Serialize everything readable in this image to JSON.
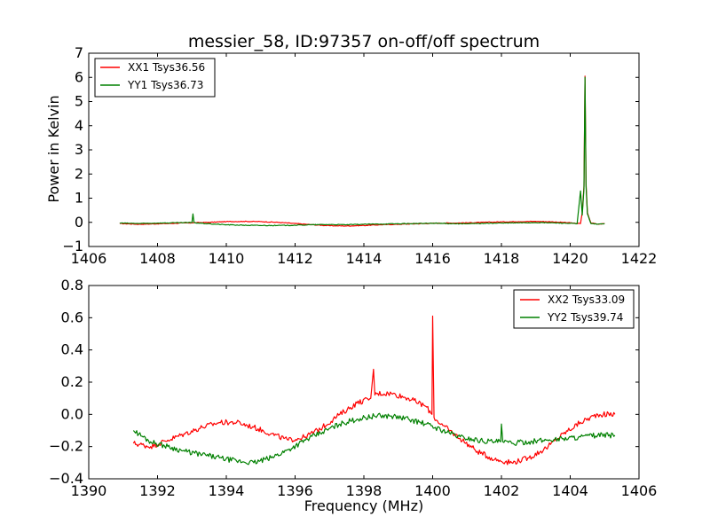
{
  "chart_data": [
    {
      "type": "line",
      "title": "messier_58, ID:97357 on-off/off spectrum",
      "xlabel": "",
      "ylabel": "Power in Kelvin",
      "xlim": [
        1406,
        1422
      ],
      "ylim": [
        -1,
        7
      ],
      "xticks": [
        1406,
        1408,
        1410,
        1412,
        1414,
        1416,
        1418,
        1420,
        1422
      ],
      "yticks": [
        -1,
        0,
        1,
        2,
        3,
        4,
        5,
        6,
        7
      ],
      "legend_position": "top-left",
      "series": [
        {
          "name": "XX1 Tsys36.56",
          "color": "#ff0000",
          "x": [
            1406.9,
            1407.5,
            1408.0,
            1408.5,
            1409.0,
            1409.5,
            1410.0,
            1410.5,
            1411.0,
            1411.5,
            1412.0,
            1412.5,
            1413.0,
            1413.5,
            1414.0,
            1414.5,
            1415.0,
            1415.5,
            1416.0,
            1416.5,
            1417.0,
            1417.5,
            1418.0,
            1418.5,
            1419.0,
            1419.5,
            1420.0,
            1420.2,
            1420.3,
            1420.35,
            1420.4,
            1420.43,
            1420.46,
            1420.5,
            1420.6,
            1420.8,
            1421.0
          ],
          "y": [
            -0.05,
            -0.08,
            -0.06,
            -0.04,
            -0.02,
            0.0,
            0.03,
            0.04,
            0.03,
            0.0,
            -0.05,
            -0.1,
            -0.14,
            -0.15,
            -0.13,
            -0.1,
            -0.08,
            -0.06,
            -0.04,
            -0.03,
            -0.02,
            0.0,
            0.02,
            0.03,
            0.04,
            0.02,
            -0.02,
            -0.05,
            -0.05,
            0.4,
            1.5,
            6.05,
            1.6,
            0.4,
            -0.02,
            -0.08,
            -0.05
          ]
        },
        {
          "name": "YY1 Tsys36.73",
          "color": "#008000",
          "x": [
            1406.9,
            1407.5,
            1408.0,
            1408.5,
            1409.0,
            1409.03,
            1409.06,
            1409.1,
            1409.5,
            1410.0,
            1410.5,
            1411.0,
            1411.5,
            1412.0,
            1412.5,
            1413.0,
            1413.5,
            1414.0,
            1414.5,
            1415.0,
            1415.5,
            1416.0,
            1416.5,
            1417.0,
            1417.5,
            1418.0,
            1418.5,
            1419.0,
            1419.5,
            1420.0,
            1420.2,
            1420.3,
            1420.35,
            1420.4,
            1420.43,
            1420.46,
            1420.5,
            1420.6,
            1420.8,
            1421.0
          ],
          "y": [
            -0.03,
            -0.05,
            -0.03,
            -0.02,
            -0.01,
            0.35,
            0.0,
            -0.02,
            -0.06,
            -0.1,
            -0.12,
            -0.13,
            -0.13,
            -0.12,
            -0.1,
            -0.09,
            -0.1,
            -0.08,
            -0.07,
            -0.06,
            -0.05,
            -0.04,
            -0.05,
            -0.06,
            -0.04,
            -0.03,
            -0.02,
            -0.01,
            -0.02,
            -0.04,
            -0.06,
            1.3,
            0.3,
            1.4,
            6.0,
            1.5,
            0.35,
            -0.05,
            -0.08,
            -0.05
          ]
        }
      ]
    },
    {
      "type": "line",
      "title": "",
      "xlabel": "Frequency (MHz)",
      "ylabel": "",
      "xlim": [
        1390,
        1406
      ],
      "ylim": [
        -0.4,
        0.8
      ],
      "xticks": [
        1390,
        1392,
        1394,
        1396,
        1398,
        1400,
        1402,
        1404,
        1406
      ],
      "yticks": [
        -0.4,
        -0.2,
        0.0,
        0.2,
        0.4,
        0.6,
        0.8
      ],
      "ytick_labels": [
        "−0.4",
        "−0.2",
        "0.0",
        "0.2",
        "0.4",
        "0.6",
        "0.8"
      ],
      "legend_position": "top-right",
      "series": [
        {
          "name": "XX2 Tsys33.09",
          "color": "#ff0000",
          "x": [
            1391.3,
            1391.8,
            1392.3,
            1392.8,
            1393.3,
            1393.8,
            1394.3,
            1394.8,
            1395.3,
            1395.8,
            1396.3,
            1396.8,
            1397.3,
            1397.8,
            1398.2,
            1398.28,
            1398.32,
            1398.4,
            1398.8,
            1399.3,
            1399.8,
            1399.98,
            1400.0,
            1400.04,
            1400.3,
            1400.8,
            1401.3,
            1401.8,
            1402.3,
            1402.8,
            1403.3,
            1403.8,
            1404.3,
            1404.8,
            1405.3
          ],
          "y": [
            -0.18,
            -0.2,
            -0.16,
            -0.12,
            -0.08,
            -0.05,
            -0.05,
            -0.08,
            -0.12,
            -0.16,
            -0.14,
            -0.08,
            0.0,
            0.07,
            0.1,
            0.28,
            0.12,
            0.13,
            0.13,
            0.1,
            0.05,
            0.0,
            0.61,
            -0.02,
            -0.07,
            -0.15,
            -0.23,
            -0.28,
            -0.3,
            -0.27,
            -0.21,
            -0.12,
            -0.05,
            0.0,
            0.0
          ]
        },
        {
          "name": "YY2 Tsys39.74",
          "color": "#008000",
          "x": [
            1391.3,
            1391.8,
            1392.3,
            1392.8,
            1393.3,
            1393.8,
            1394.3,
            1394.8,
            1395.3,
            1395.8,
            1396.3,
            1396.8,
            1397.3,
            1397.8,
            1398.3,
            1398.8,
            1399.3,
            1399.8,
            1400.3,
            1400.8,
            1401.3,
            1401.8,
            1401.98,
            1402.0,
            1402.04,
            1402.3,
            1402.8,
            1403.3,
            1403.8,
            1404.3,
            1404.8,
            1405.3
          ],
          "y": [
            -0.1,
            -0.17,
            -0.2,
            -0.23,
            -0.25,
            -0.27,
            -0.29,
            -0.3,
            -0.27,
            -0.22,
            -0.16,
            -0.11,
            -0.06,
            -0.03,
            -0.01,
            -0.01,
            -0.03,
            -0.06,
            -0.1,
            -0.14,
            -0.16,
            -0.17,
            -0.17,
            -0.06,
            -0.17,
            -0.18,
            -0.17,
            -0.16,
            -0.15,
            -0.14,
            -0.13,
            -0.13
          ]
        }
      ]
    }
  ]
}
